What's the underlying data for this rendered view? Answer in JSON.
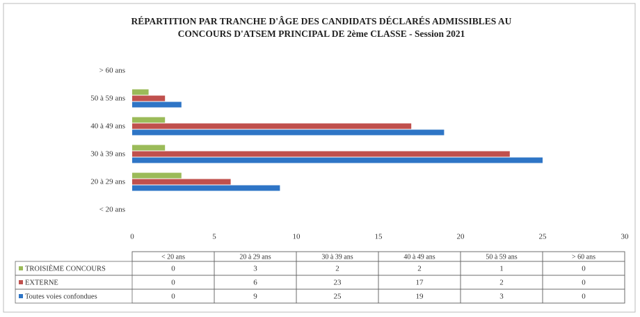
{
  "chart_data": {
    "type": "bar",
    "orientation": "horizontal",
    "title": [
      "RÉPARTITION PAR TRANCHE D'ÂGE DES CANDIDATS DÉCLARÉS ADMISSIBLES AU",
      "CONCOURS D'ATSEM PRINCIPAL DE 2ème CLASSE - Session 2021"
    ],
    "categories": [
      "< 20 ans",
      "20 à 29 ans",
      "30 à 39 ans",
      "40 à 49 ans",
      "50 à 59 ans",
      "> 60 ans"
    ],
    "series": [
      {
        "name": "TROISIÈME CONCOURS",
        "color": "#9bbb59",
        "values": [
          0,
          3,
          2,
          2,
          1,
          0
        ]
      },
      {
        "name": "EXTERNE",
        "color": "#c0504d",
        "values": [
          0,
          6,
          23,
          17,
          2,
          0
        ]
      },
      {
        "name": "Toutes voies confondues",
        "color": "#2e75c6",
        "values": [
          0,
          9,
          25,
          19,
          3,
          0
        ]
      }
    ],
    "xlim": [
      0,
      30
    ],
    "xticks": [
      0,
      5,
      10,
      15,
      20,
      25,
      30
    ],
    "grid": false,
    "data_table": true
  }
}
